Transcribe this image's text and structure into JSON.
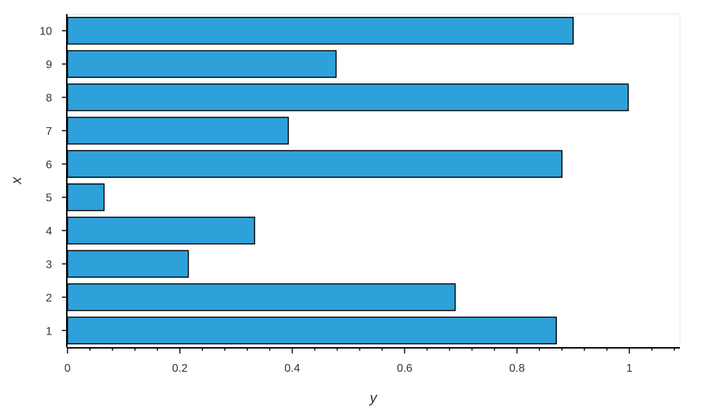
{
  "chart_data": {
    "type": "bar",
    "orientation": "horizontal",
    "categories": [
      "1",
      "2",
      "3",
      "4",
      "5",
      "6",
      "7",
      "8",
      "9",
      "10"
    ],
    "values": [
      0.87,
      0.69,
      0.215,
      0.333,
      0.065,
      0.88,
      0.393,
      0.998,
      0.478,
      0.9
    ],
    "xlabel": "y",
    "ylabel": "x",
    "xlim": [
      0,
      1.09
    ],
    "xticks": [
      0,
      0.2,
      0.4,
      0.6,
      0.8,
      1
    ],
    "xtick_labels": [
      "0",
      "0.2",
      "0.4",
      "0.6",
      "0.8",
      "1"
    ],
    "grid": false,
    "colors": {
      "bar": "#2ea1da",
      "bar_edge": "#000000",
      "frame": "#e5e5e5",
      "axis": "#000000"
    }
  }
}
